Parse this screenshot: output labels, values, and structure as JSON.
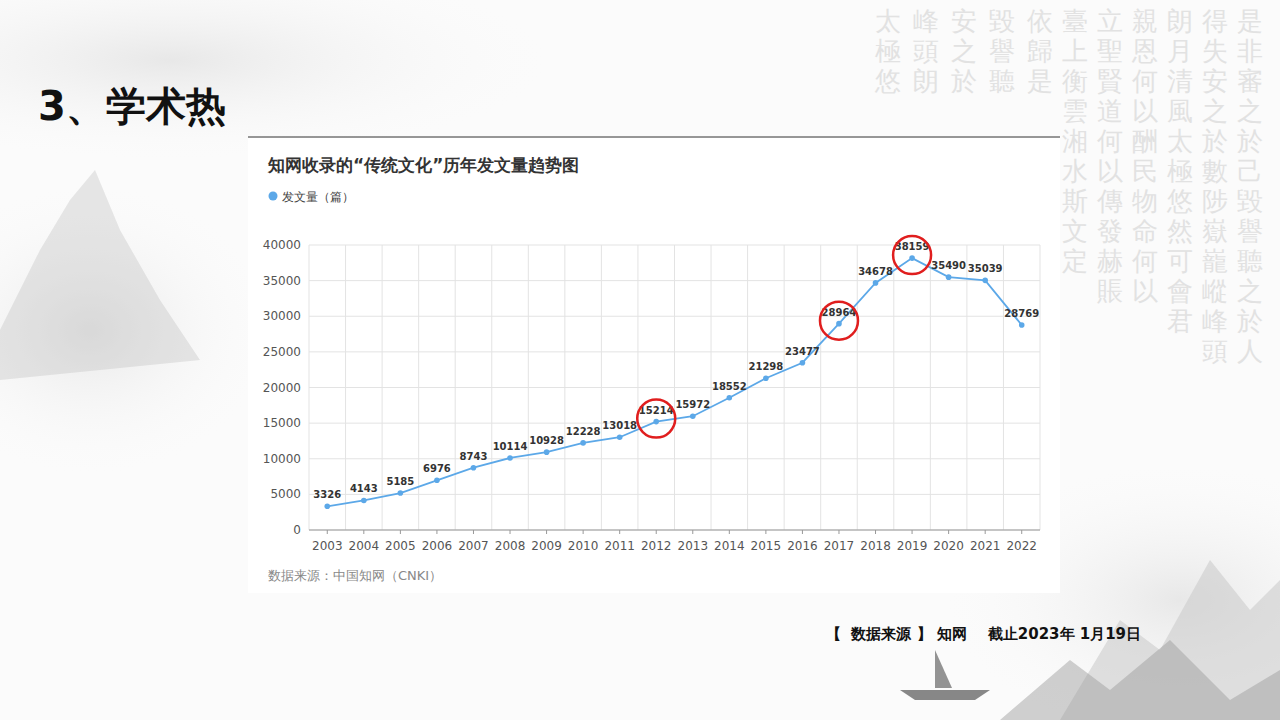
{
  "page": {
    "heading": "3、学术热",
    "footer": "【  数据来源 】 知网    截止2023年 1月19日",
    "background_text": [
      "是非審之於己毀譽聽之於人",
      "得失安之於數陟嶽巃嵷峰頭",
      "朗月清風太極悠然可會君",
      "親恩何以酬民物命何以",
      "立聖賢道何以傳發赫賬",
      "臺上衡雲湘水斯文定",
      "依歸是",
      "毀譽聽",
      "安之於",
      "峰頭朗",
      "太極悠"
    ]
  },
  "chart_data": {
    "type": "line",
    "title": "知网收录的“传统文化”历年发文量趋势图",
    "source": "数据来源：中国知网（CNKI）",
    "categories": [
      "2003",
      "2004",
      "2005",
      "2006",
      "2007",
      "2008",
      "2009",
      "2010",
      "2011",
      "2012",
      "2013",
      "2014",
      "2015",
      "2016",
      "2017",
      "2018",
      "2019",
      "2020",
      "2021",
      "2022"
    ],
    "series": [
      {
        "name": "发文量（篇）",
        "color": "#5ca8e8",
        "marker": "circle",
        "line_style": "solid",
        "values": [
          3326,
          4143,
          5185,
          6976,
          8743,
          10114,
          10928,
          12228,
          13018,
          15214,
          15972,
          18552,
          21298,
          23477,
          28964,
          34678,
          38159,
          35490,
          35039,
          28769
        ]
      }
    ],
    "ylim": [
      0,
      40000
    ],
    "yticks": [
      0,
      5000,
      10000,
      15000,
      20000,
      25000,
      30000,
      35000,
      40000
    ],
    "grid": true,
    "legend": "top-left",
    "data_labels": true,
    "highlight": [
      "2012",
      "2017",
      "2019"
    ]
  }
}
